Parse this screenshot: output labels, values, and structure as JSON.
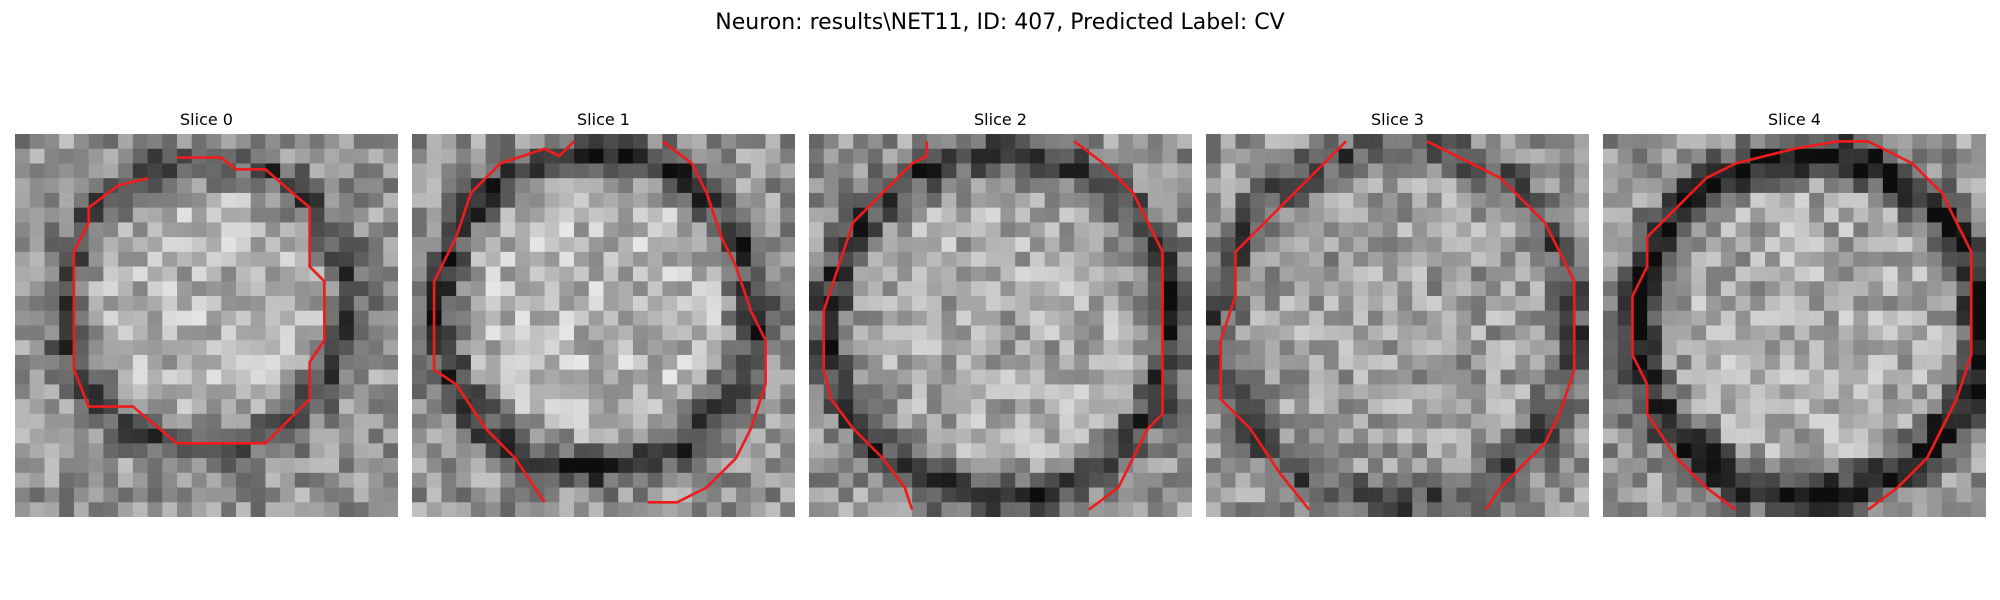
{
  "figure": {
    "suptitle": "Neuron: results\\NET11, ID: 407, Predicted Label: CV",
    "colormap": "gray",
    "contour_color": "#ee1c1c"
  },
  "panels": [
    {
      "title": "Slice 0"
    },
    {
      "title": "Slice 1"
    },
    {
      "title": "Slice 2"
    },
    {
      "title": "Slice 3"
    },
    {
      "title": "Slice 4"
    }
  ]
}
